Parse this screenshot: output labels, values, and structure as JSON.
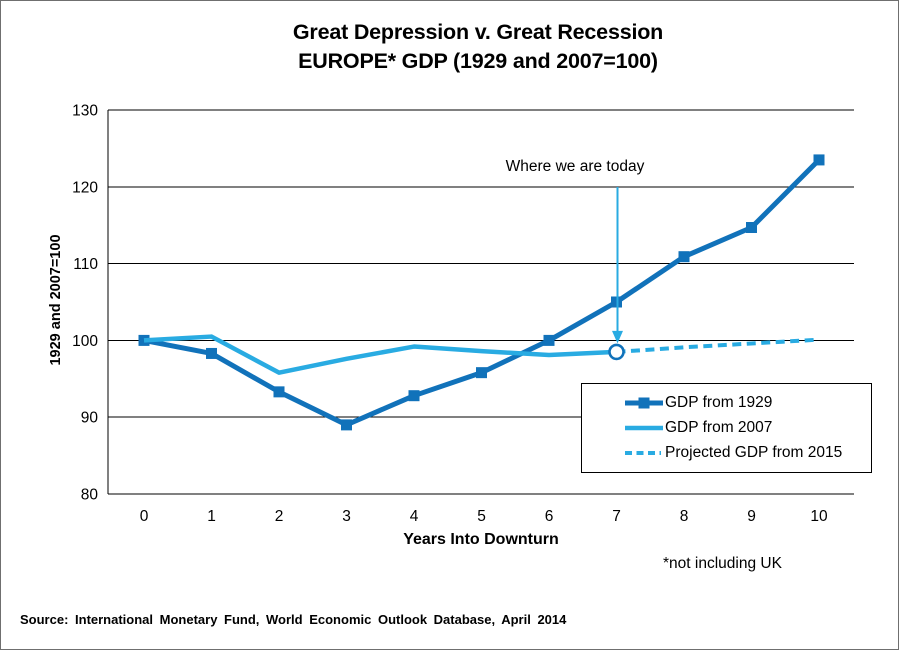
{
  "title": {
    "line1": "Great Depression v. Great Recession",
    "line2": "EUROPE* GDP (1929 and 2007=100)"
  },
  "footnote": "*not including UK",
  "source": "Source: International Monetary Fund, World Economic Outlook Database, April 2014",
  "colors": {
    "gdp_1929": "#1172BA",
    "gdp_2007": "#29ABE2",
    "axis": "#000000",
    "page_border": "#6f6f6f"
  },
  "chart_data": {
    "type": "line",
    "title": "Great Depression v. Great Recession EUROPE* GDP (1929 and 2007=100)",
    "xlabel": "Years Into Downturn",
    "ylabel": "1929 and 2007=100",
    "x": [
      0,
      1,
      2,
      3,
      4,
      5,
      6,
      7,
      8,
      9,
      10
    ],
    "y_ticks": [
      80,
      90,
      100,
      110,
      120,
      130
    ],
    "ylim": [
      80,
      130
    ],
    "grid": true,
    "legend_position": "inside-lower-right",
    "series": [
      {
        "name": "GDP from 1929",
        "x": [
          0,
          1,
          2,
          3,
          4,
          5,
          6,
          7,
          8,
          9,
          10
        ],
        "values": [
          100,
          98.3,
          93.3,
          89,
          92.8,
          95.8,
          100,
          105,
          110.9,
          114.7,
          123.5
        ],
        "color": "#1172BA",
        "style": "solid",
        "marker": "square"
      },
      {
        "name": "GDP from 2007",
        "x": [
          0,
          1,
          2,
          3,
          4,
          5,
          6,
          7
        ],
        "values": [
          100,
          100.5,
          95.8,
          97.6,
          99.2,
          98.6,
          98.1,
          98.5
        ],
        "color": "#29ABE2",
        "style": "solid",
        "marker": "none"
      },
      {
        "name": "Projected GDP from 2015",
        "x": [
          7,
          8,
          9,
          10
        ],
        "values": [
          98.5,
          99.1,
          99.6,
          100.1
        ],
        "color": "#29ABE2",
        "style": "dashed",
        "marker": "none"
      }
    ],
    "annotation": {
      "text": "Where we are today",
      "points_to": {
        "series": "GDP from 2007",
        "x": 7,
        "y": 98.5
      },
      "marker": "open-circle"
    }
  }
}
